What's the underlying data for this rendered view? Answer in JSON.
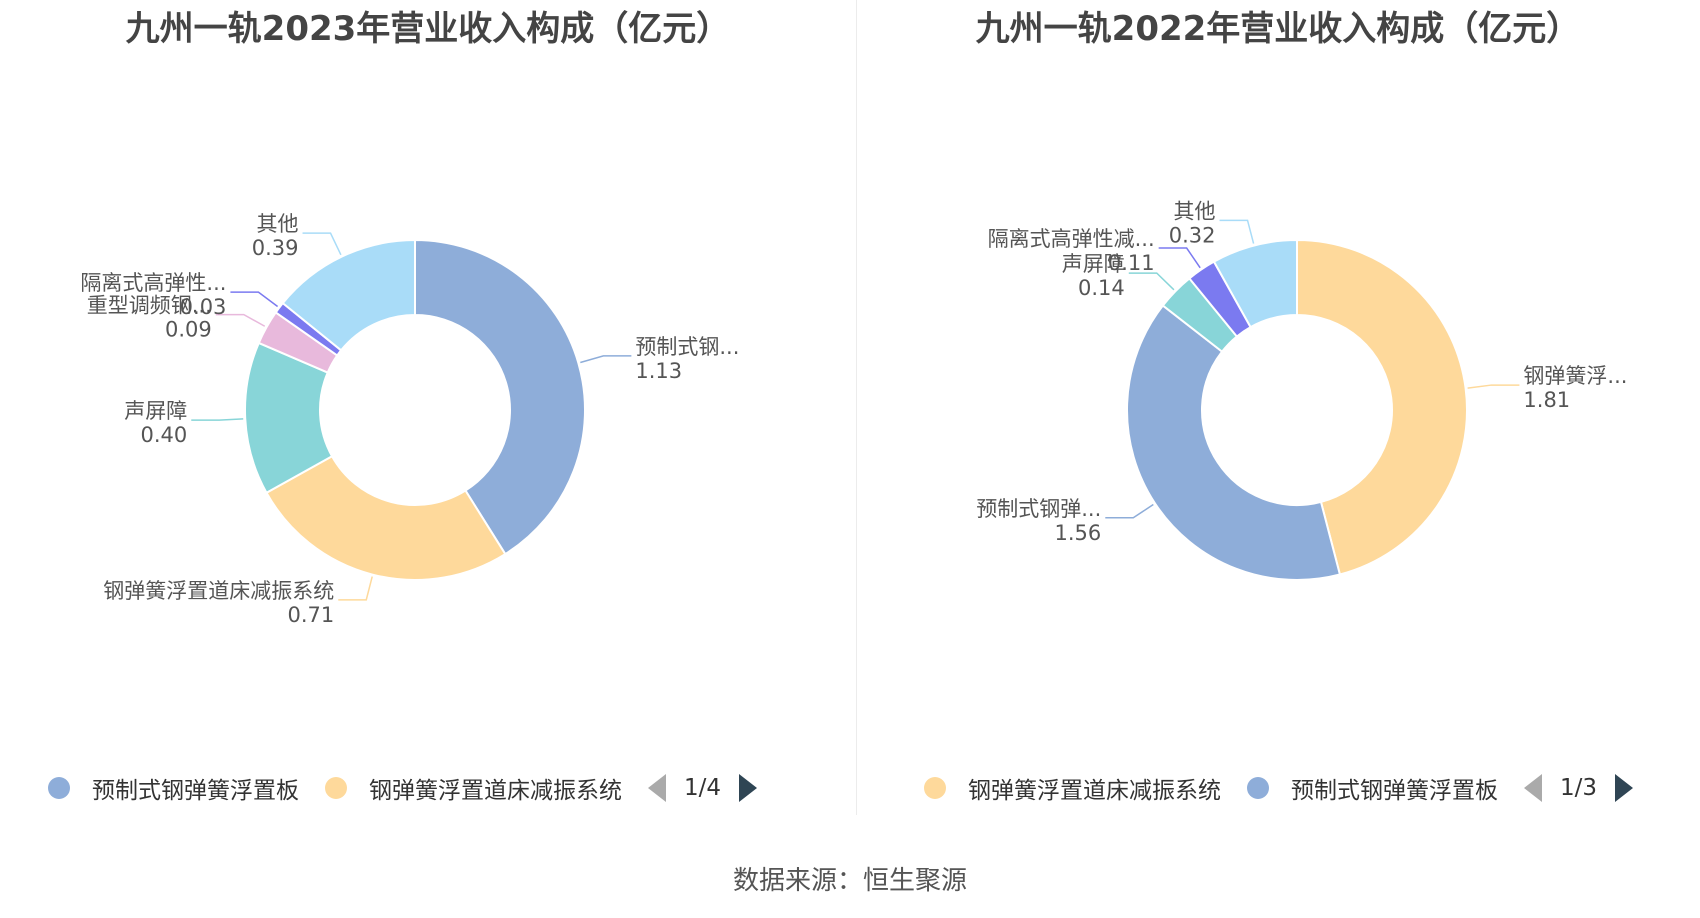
{
  "footer": {
    "source": "数据来源：恒生聚源"
  },
  "chart_data": [
    {
      "type": "pie",
      "title": "九州一轨2023年营业收入构成（亿元）",
      "slices": [
        {
          "full": "预制式钢弹簧浮置板",
          "label": "预制式钢...",
          "value": 1.13,
          "display": "1.13",
          "color": "#8eadd9"
        },
        {
          "full": "钢弹簧浮置道床减振系统",
          "label": "钢弹簧浮置道床减振系统",
          "value": 0.71,
          "display": "0.71",
          "color": "#fed99b"
        },
        {
          "full": "声屏障",
          "label": "声屏障",
          "value": 0.4,
          "display": "0.40",
          "color": "#88d5d8"
        },
        {
          "full": "重型调频钢...",
          "label": "重型调频钢...",
          "value": 0.09,
          "display": "0.09",
          "color": "#e8b9dc"
        },
        {
          "full": "隔离式高弹性...",
          "label": "隔离式高弹性...",
          "value": 0.03,
          "display": "0.03",
          "color": "#7b7af0"
        },
        {
          "full": "其他",
          "label": "其他",
          "value": 0.39,
          "display": "0.39",
          "color": "#a9dcf8"
        }
      ],
      "legend": {
        "items": [
          {
            "label": "预制式钢弹簧浮置板",
            "color": "#8eadd9"
          },
          {
            "label": "钢弹簧浮置道床减振系统",
            "color": "#fed99b"
          }
        ],
        "page": "1/4"
      }
    },
    {
      "type": "pie",
      "title": "九州一轨2022年营业收入构成（亿元）",
      "slices": [
        {
          "full": "钢弹簧浮置道床减振系统",
          "label": "钢弹簧浮...",
          "value": 1.81,
          "display": "1.81",
          "color": "#fed99b"
        },
        {
          "full": "预制式钢弹簧浮置板",
          "label": "预制式钢弹...",
          "value": 1.56,
          "display": "1.56",
          "color": "#8eadd9"
        },
        {
          "full": "声屏障",
          "label": "声屏障",
          "value": 0.14,
          "display": "0.14",
          "color": "#88d5d8"
        },
        {
          "full": "隔离式高弹性减...",
          "label": "隔离式高弹性减...",
          "value": 0.11,
          "display": "0.11",
          "color": "#7b7af0"
        },
        {
          "full": "其他",
          "label": "其他",
          "value": 0.32,
          "display": "0.32",
          "color": "#a9dcf8"
        }
      ],
      "legend": {
        "items": [
          {
            "label": "钢弹簧浮置道床减振系统",
            "color": "#fed99b"
          },
          {
            "label": "预制式钢弹簧浮置板",
            "color": "#8eadd9"
          }
        ],
        "page": "1/3"
      }
    }
  ]
}
